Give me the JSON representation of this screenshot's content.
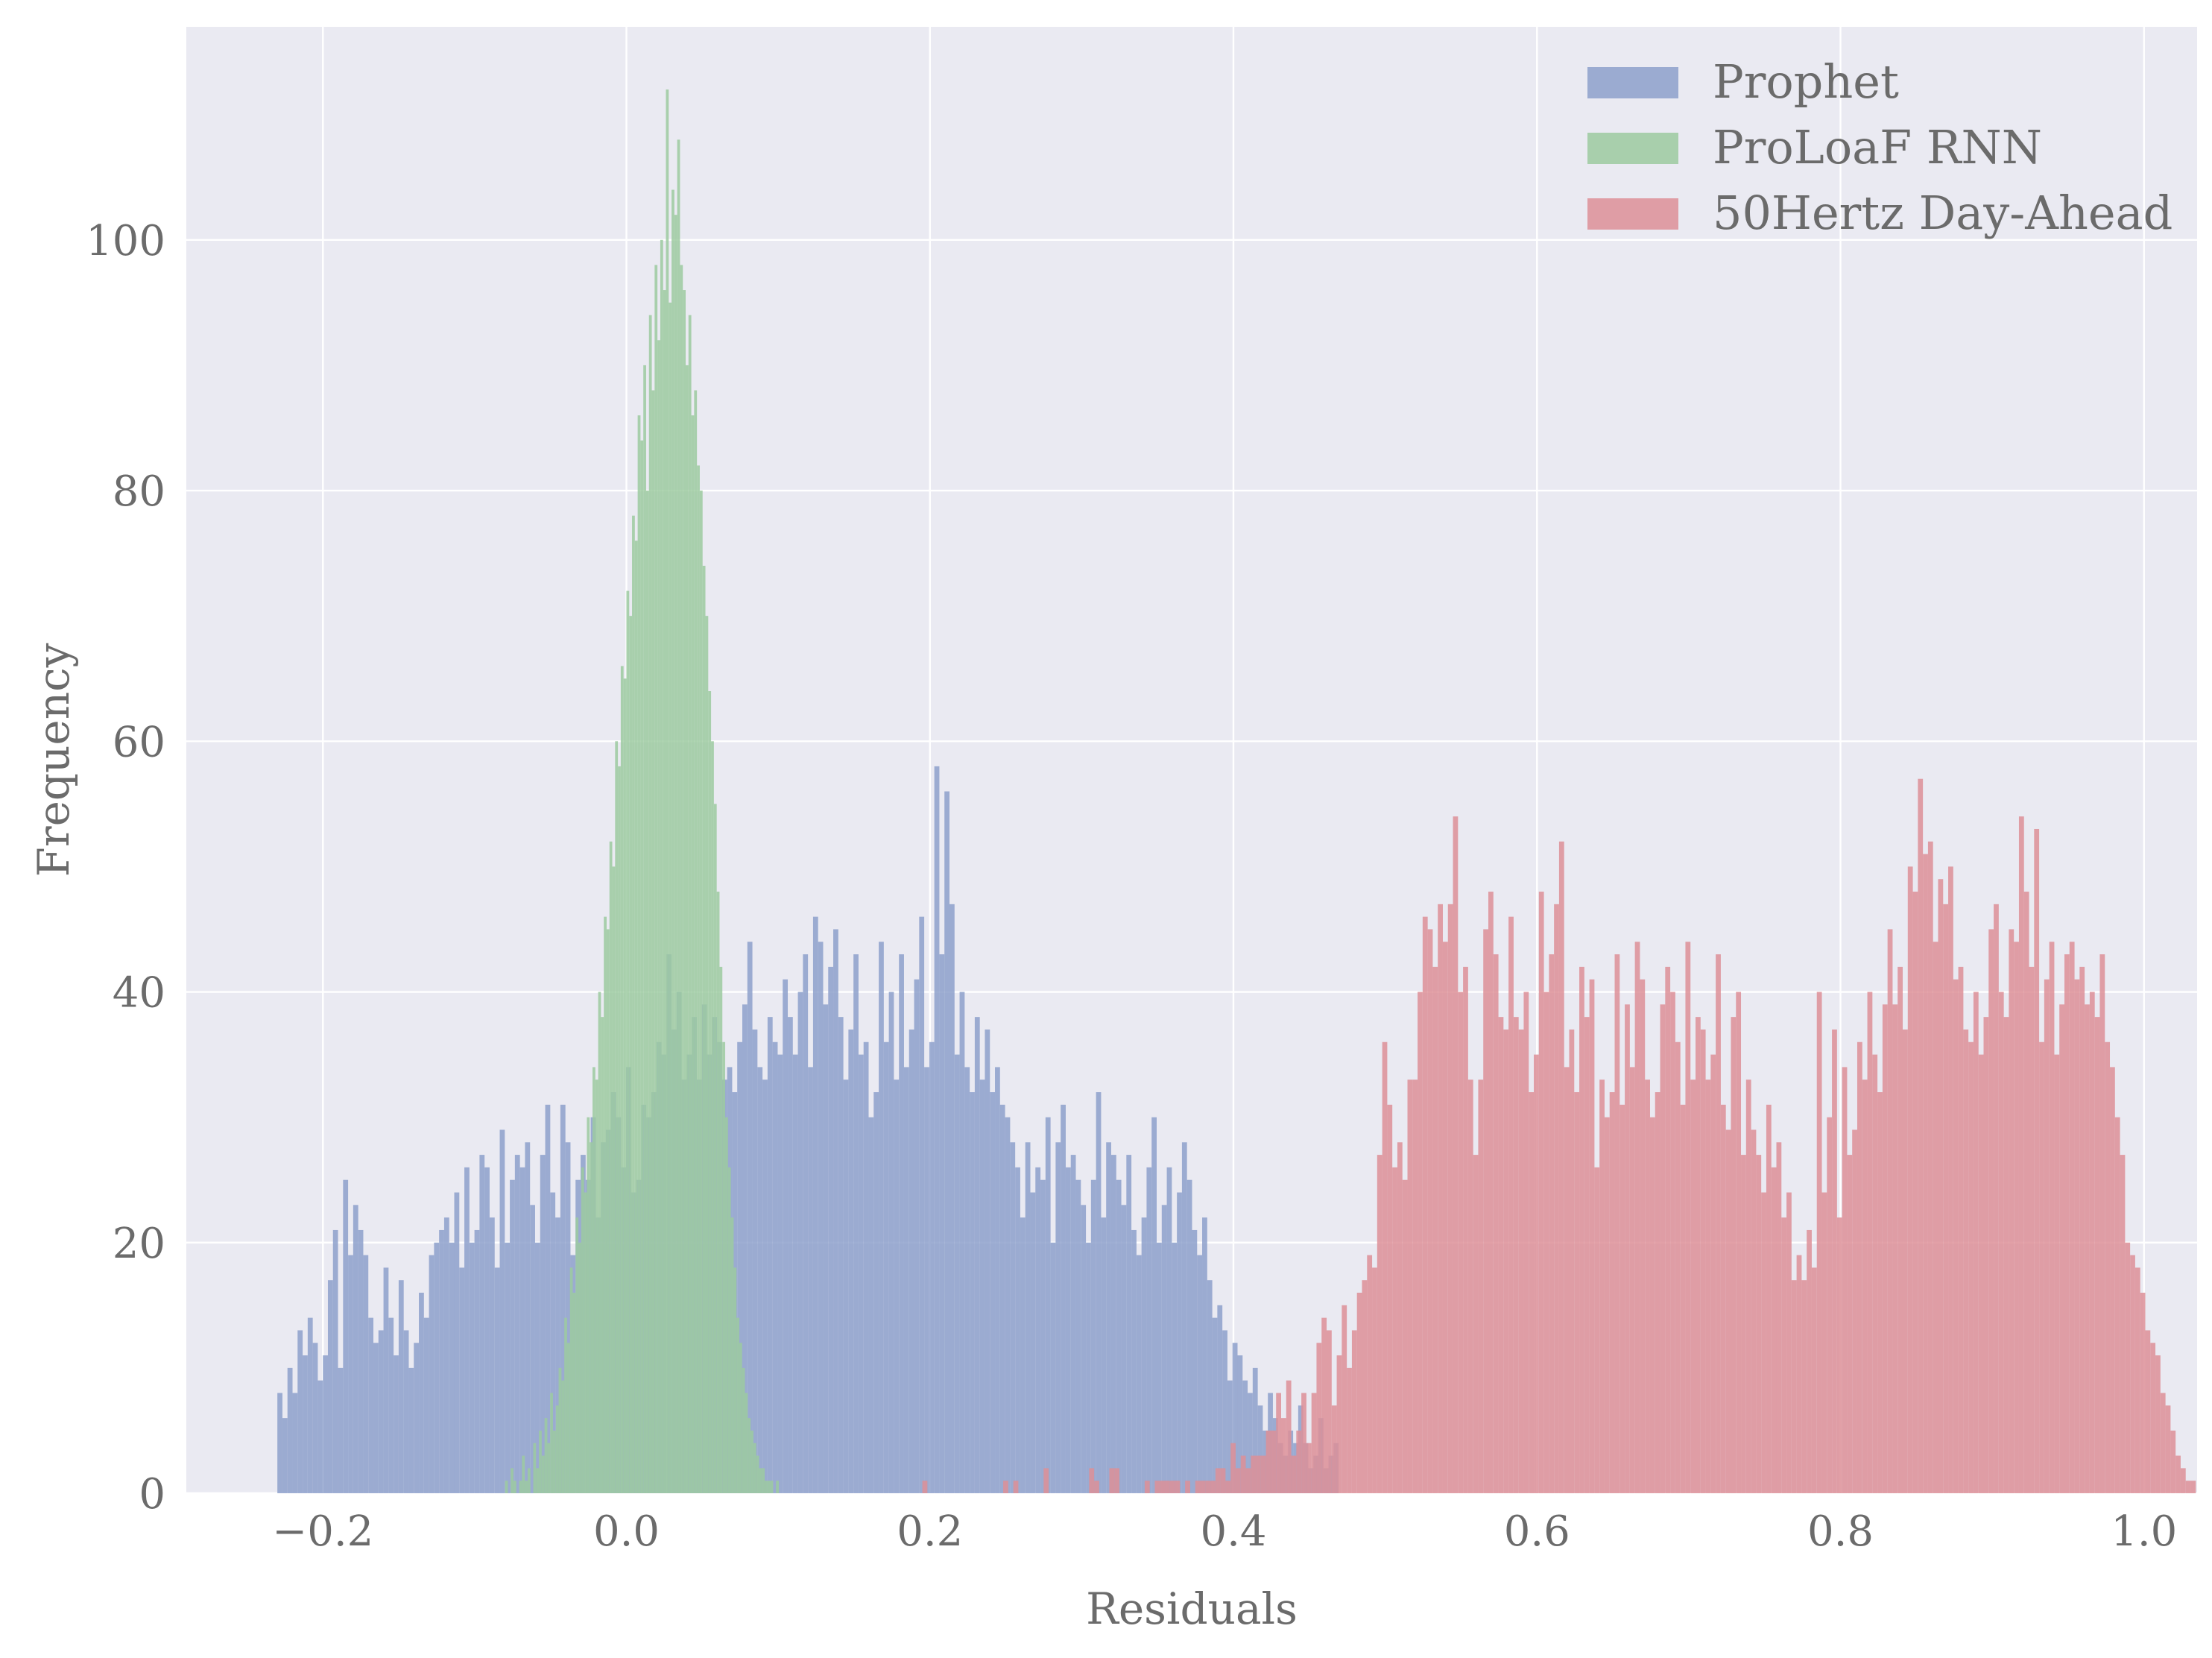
{
  "chart_data": {
    "type": "histogram",
    "xlabel": "Residuals",
    "ylabel": "Frequency",
    "xlim": [
      -0.29,
      1.035
    ],
    "ylim": [
      0,
      117
    ],
    "xticks": [
      {
        "value": -0.2,
        "label": "−0.2"
      },
      {
        "value": 0.0,
        "label": "0.0"
      },
      {
        "value": 0.2,
        "label": "0.2"
      },
      {
        "value": 0.4,
        "label": "0.4"
      },
      {
        "value": 0.6,
        "label": "0.6"
      },
      {
        "value": 0.8,
        "label": "0.8"
      },
      {
        "value": 1.0,
        "label": "1.0"
      }
    ],
    "yticks": [
      {
        "value": 0,
        "label": "0"
      },
      {
        "value": 20,
        "label": "20"
      },
      {
        "value": 40,
        "label": "40"
      },
      {
        "value": 60,
        "label": "60"
      },
      {
        "value": 80,
        "label": "80"
      },
      {
        "value": 100,
        "label": "100"
      }
    ],
    "grid": true,
    "legend_position": "top-right",
    "background": "#eaeaf2",
    "series": [
      {
        "name": "Prophet",
        "color": "#8da0cb",
        "bin_start": -0.23,
        "bin_width": 0.00333,
        "counts": [
          8,
          6,
          10,
          8,
          13,
          11,
          14,
          12,
          9,
          11,
          17,
          21,
          10,
          25,
          19,
          23,
          21,
          19,
          14,
          12,
          13,
          18,
          14,
          11,
          17,
          13,
          10,
          12,
          16,
          14,
          19,
          20,
          21,
          22,
          20,
          24,
          18,
          26,
          20,
          21,
          27,
          26,
          22,
          18,
          29,
          20,
          25,
          27,
          26,
          28,
          23,
          20,
          27,
          31,
          24,
          22,
          31,
          28,
          19,
          25,
          27,
          25,
          30,
          22,
          28,
          29,
          32,
          30,
          26,
          34,
          24,
          25,
          31,
          30,
          32,
          36,
          35,
          43,
          37,
          40,
          33,
          35,
          38,
          33,
          39,
          35,
          38,
          36,
          33,
          34,
          32,
          36,
          39,
          44,
          37,
          34,
          33,
          38,
          36,
          35,
          41,
          38,
          35,
          40,
          43,
          34,
          46,
          44,
          39,
          42,
          45,
          38,
          33,
          37,
          43,
          35,
          36,
          30,
          32,
          44,
          36,
          40,
          33,
          43,
          34,
          37,
          41,
          46,
          34,
          36,
          58,
          43,
          56,
          47,
          35,
          40,
          34,
          32,
          38,
          33,
          37,
          32,
          34,
          31,
          30,
          28,
          26,
          22,
          28,
          24,
          26,
          25,
          30,
          20,
          28,
          31,
          26,
          27,
          25,
          23,
          20,
          25,
          32,
          22,
          28,
          27,
          25,
          23,
          27,
          21,
          19,
          22,
          26,
          30,
          20,
          23,
          26,
          20,
          24,
          28,
          25,
          21,
          19,
          22,
          17,
          14,
          15,
          13,
          9,
          12,
          11,
          9,
          8,
          10,
          7,
          5,
          8,
          6,
          4,
          3,
          5,
          4,
          7,
          4,
          2,
          3,
          6,
          2,
          3,
          4
        ]
      },
      {
        "name": "ProLoaF RNN",
        "color": "#9ccaa0",
        "bin_start": -0.08,
        "bin_width": 0.00186,
        "counts": [
          1,
          0,
          2,
          1,
          0,
          1,
          3,
          1,
          2,
          0,
          4,
          2,
          5,
          3,
          6,
          4,
          8,
          5,
          7,
          10,
          9,
          14,
          12,
          18,
          16,
          22,
          20,
          26,
          24,
          30,
          28,
          34,
          33,
          40,
          38,
          46,
          45,
          52,
          50,
          60,
          58,
          66,
          65,
          72,
          70,
          78,
          76,
          86,
          84,
          90,
          80,
          94,
          88,
          98,
          92,
          100,
          96,
          112,
          95,
          104,
          102,
          108,
          98,
          96,
          90,
          94,
          86,
          88,
          82,
          80,
          74,
          70,
          64,
          60,
          55,
          48,
          42,
          36,
          30,
          26,
          22,
          18,
          14,
          12,
          10,
          8,
          6,
          5,
          4,
          3,
          2,
          2,
          1,
          1,
          1,
          0,
          1
        ]
      },
      {
        "name": "50Hertz Day-Ahead",
        "color": "#dd8f98",
        "bin_start": 0.195,
        "bin_width": 0.00333,
        "counts": [
          1,
          0,
          0,
          0,
          0,
          0,
          0,
          0,
          0,
          0,
          0,
          0,
          0,
          0,
          0,
          0,
          1,
          0,
          1,
          0,
          0,
          0,
          0,
          0,
          2,
          0,
          0,
          0,
          0,
          0,
          0,
          0,
          0,
          2,
          1,
          0,
          0,
          2,
          2,
          0,
          0,
          0,
          0,
          0,
          1,
          0,
          1,
          1,
          1,
          1,
          1,
          0,
          1,
          0,
          1,
          1,
          1,
          1,
          2,
          2,
          1,
          4,
          2,
          3,
          2,
          3,
          3,
          3,
          5,
          5,
          8,
          6,
          9,
          3,
          5,
          8,
          4,
          8,
          12,
          14,
          13,
          7,
          11,
          15,
          10,
          13,
          16,
          17,
          19,
          18,
          27,
          36,
          31,
          26,
          28,
          25,
          33,
          33,
          40,
          46,
          45,
          42,
          47,
          44,
          47,
          54,
          40,
          42,
          33,
          27,
          33,
          45,
          48,
          43,
          38,
          37,
          46,
          38,
          37,
          40,
          32,
          35,
          48,
          40,
          43,
          47,
          52,
          34,
          37,
          32,
          42,
          38,
          41,
          26,
          33,
          30,
          32,
          43,
          31,
          39,
          34,
          44,
          41,
          33,
          30,
          32,
          39,
          42,
          40,
          36,
          31,
          44,
          33,
          38,
          37,
          33,
          35,
          43,
          31,
          29,
          38,
          40,
          27,
          33,
          29,
          27,
          24,
          31,
          26,
          28,
          22,
          24,
          17,
          19,
          17,
          21,
          18,
          40,
          24,
          30,
          37,
          22,
          34,
          27,
          29,
          36,
          33,
          40,
          35,
          32,
          39,
          45,
          39,
          42,
          37,
          50,
          48,
          57,
          51,
          52,
          44,
          49,
          47,
          50,
          41,
          42,
          37,
          36,
          40,
          35,
          38,
          45,
          47,
          40,
          38,
          45,
          44,
          54,
          48,
          42,
          53,
          36,
          41,
          44,
          35,
          39,
          43,
          44,
          41,
          42,
          39,
          40,
          38,
          43,
          36,
          34,
          30,
          27,
          20,
          19,
          18,
          16,
          13,
          12,
          11,
          8,
          7,
          5,
          3,
          2,
          1,
          1
        ]
      }
    ]
  }
}
